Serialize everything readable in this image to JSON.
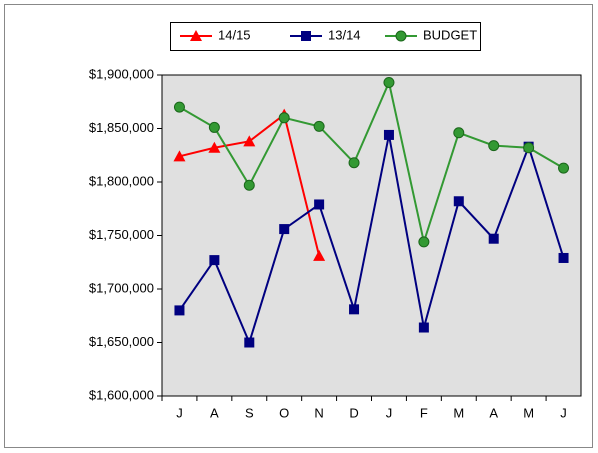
{
  "chart_data": {
    "type": "line",
    "categories": [
      "J",
      "A",
      "S",
      "O",
      "N",
      "D",
      "J",
      "F",
      "M",
      "A",
      "M",
      "J"
    ],
    "series": [
      {
        "name": "14/15",
        "color": "#ff0000",
        "marker": "triangle",
        "values": [
          1824000,
          1832000,
          1838000,
          1863000,
          1731000,
          null,
          null,
          null,
          null,
          null,
          null,
          null
        ]
      },
      {
        "name": "13/14",
        "color": "#000080",
        "marker": "square",
        "values": [
          1680000,
          1727000,
          1650000,
          1756000,
          1779000,
          1681000,
          1844000,
          1664000,
          1782000,
          1747000,
          1833000,
          1729000
        ]
      },
      {
        "name": "BUDGET",
        "color": "#339933",
        "marker": "circle",
        "values": [
          1870000,
          1851000,
          1797000,
          1860000,
          1852000,
          1818000,
          1893000,
          1744000,
          1846000,
          1834000,
          1832000,
          1813000
        ]
      }
    ],
    "ylim": [
      1600000,
      1900000
    ],
    "yticks": [
      {
        "value": 1600000,
        "label": "$1,600,000"
      },
      {
        "value": 1650000,
        "label": "$1,650,000"
      },
      {
        "value": 1700000,
        "label": "$1,700,000"
      },
      {
        "value": 1750000,
        "label": "$1,750,000"
      },
      {
        "value": 1800000,
        "label": "$1,800,000"
      },
      {
        "value": 1850000,
        "label": "$1,850,000"
      },
      {
        "value": 1900000,
        "label": "$1,900,000"
      }
    ],
    "legend": "top",
    "grid": false
  }
}
